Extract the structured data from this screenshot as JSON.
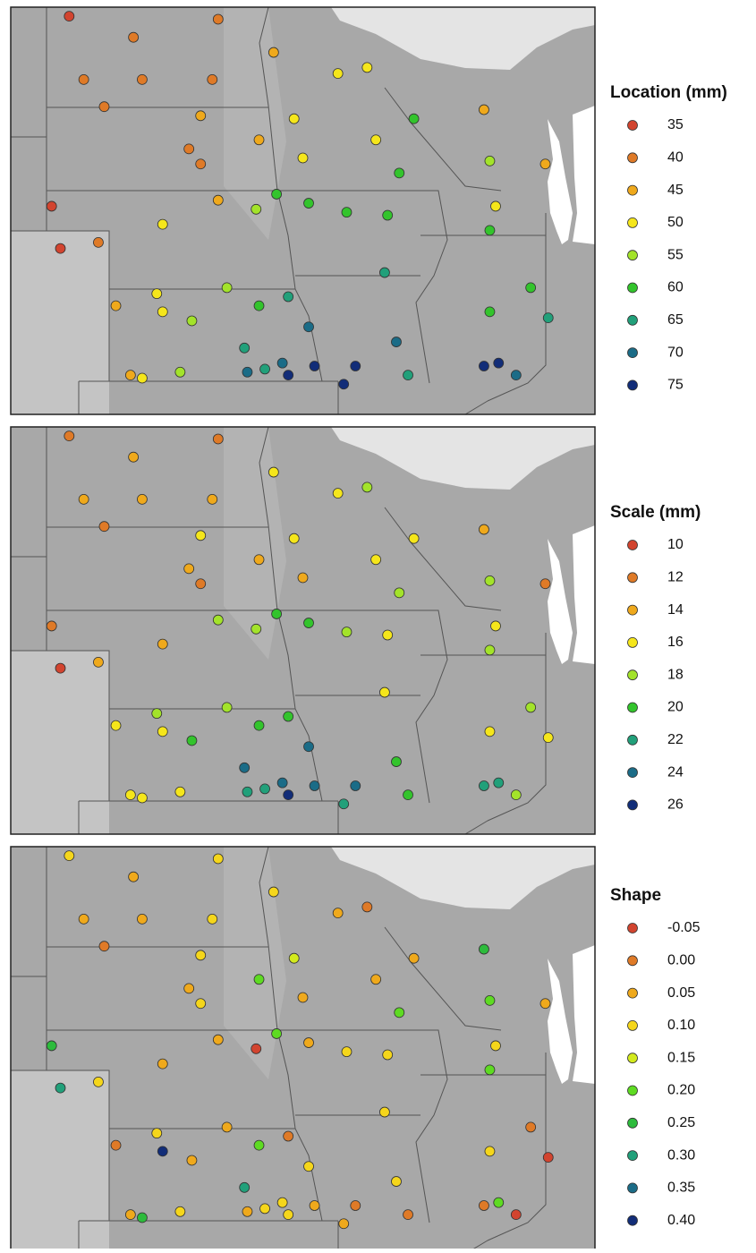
{
  "stations": [
    {
      "lon": -103.0,
      "lat": 49.2
    },
    {
      "lon": -100.8,
      "lat": 48.5
    },
    {
      "lon": -102.5,
      "lat": 47.1
    },
    {
      "lon": -100.5,
      "lat": 47.1
    },
    {
      "lon": -98.1,
      "lat": 47.1
    },
    {
      "lon": -101.8,
      "lat": 46.2
    },
    {
      "lon": -97.9,
      "lat": 49.1
    },
    {
      "lon": -98.5,
      "lat": 45.9
    },
    {
      "lon": -98.9,
      "lat": 44.8
    },
    {
      "lon": -98.5,
      "lat": 44.3
    },
    {
      "lon": -96.5,
      "lat": 45.1
    },
    {
      "lon": -96.0,
      "lat": 48.0
    },
    {
      "lon": -93.8,
      "lat": 47.3
    },
    {
      "lon": -92.8,
      "lat": 47.5
    },
    {
      "lon": -95.3,
      "lat": 45.8
    },
    {
      "lon": -95.0,
      "lat": 44.5
    },
    {
      "lon": -92.5,
      "lat": 45.1
    },
    {
      "lon": -91.2,
      "lat": 45.8
    },
    {
      "lon": -88.8,
      "lat": 46.1
    },
    {
      "lon": -88.6,
      "lat": 44.4
    },
    {
      "lon": -86.7,
      "lat": 44.3
    },
    {
      "lon": -91.7,
      "lat": 44.0
    },
    {
      "lon": -103.6,
      "lat": 42.9
    },
    {
      "lon": -103.3,
      "lat": 41.5
    },
    {
      "lon": -102.0,
      "lat": 41.7
    },
    {
      "lon": -99.8,
      "lat": 42.3
    },
    {
      "lon": -97.9,
      "lat": 43.1
    },
    {
      "lon": -96.6,
      "lat": 42.8
    },
    {
      "lon": -95.9,
      "lat": 43.3
    },
    {
      "lon": -94.8,
      "lat": 43.0
    },
    {
      "lon": -93.5,
      "lat": 42.7
    },
    {
      "lon": -92.1,
      "lat": 42.6
    },
    {
      "lon": -88.4,
      "lat": 42.9
    },
    {
      "lon": -88.6,
      "lat": 42.1
    },
    {
      "lon": -101.4,
      "lat": 39.6
    },
    {
      "lon": -100.0,
      "lat": 40.0
    },
    {
      "lon": -98.8,
      "lat": 39.1
    },
    {
      "lon": -97.6,
      "lat": 40.2
    },
    {
      "lon": -96.5,
      "lat": 39.6
    },
    {
      "lon": -95.5,
      "lat": 39.9
    },
    {
      "lon": -95.7,
      "lat": 37.7
    },
    {
      "lon": -95.5,
      "lat": 37.3
    },
    {
      "lon": -94.6,
      "lat": 37.6
    },
    {
      "lon": -93.6,
      "lat": 37.0
    },
    {
      "lon": -93.2,
      "lat": 37.6
    },
    {
      "lon": -91.8,
      "lat": 38.4
    },
    {
      "lon": -91.4,
      "lat": 37.3
    },
    {
      "lon": -92.2,
      "lat": 40.7
    },
    {
      "lon": -88.6,
      "lat": 39.4
    },
    {
      "lon": -87.2,
      "lat": 40.2
    },
    {
      "lon": -86.6,
      "lat": 39.2
    },
    {
      "lon": -87.7,
      "lat": 37.3
    },
    {
      "lon": -88.3,
      "lat": 37.7
    },
    {
      "lon": -88.8,
      "lat": 37.6
    },
    {
      "lon": -100.9,
      "lat": 37.3
    },
    {
      "lon": -100.5,
      "lat": 37.2
    },
    {
      "lon": -99.2,
      "lat": 37.4
    },
    {
      "lon": -96.9,
      "lat": 37.4
    },
    {
      "lon": -96.3,
      "lat": 37.5
    },
    {
      "lon": -94.8,
      "lat": 38.9
    },
    {
      "lon": -99.8,
      "lat": 39.4
    },
    {
      "lon": -97.0,
      "lat": 38.2
    }
  ],
  "panels": [
    {
      "legend_title": "Location (mm)",
      "levels": [
        35,
        40,
        45,
        50,
        55,
        60,
        65,
        70,
        75
      ],
      "colors": [
        "#d2442f",
        "#df7a27",
        "#efa91c",
        "#f5e61b",
        "#a3e32a",
        "#33c42c",
        "#21a07a",
        "#1b6c87",
        "#122d78"
      ],
      "values": [
        35,
        40,
        40,
        40,
        40,
        40,
        40,
        45,
        40,
        40,
        45,
        45,
        50,
        50,
        50,
        50,
        50,
        60,
        45,
        55,
        45,
        60,
        35,
        35,
        40,
        50,
        45,
        55,
        60,
        60,
        60,
        60,
        50,
        60,
        45,
        50,
        55,
        55,
        60,
        65,
        70,
        75,
        75,
        75,
        75,
        70,
        65,
        65,
        60,
        60,
        65,
        70,
        75,
        75,
        45,
        50,
        55,
        70,
        65,
        70,
        50,
        65
      ]
    },
    {
      "legend_title": "Scale (mm)",
      "levels": [
        10,
        12,
        14,
        16,
        18,
        20,
        22,
        24,
        26
      ],
      "colors": [
        "#d2442f",
        "#df7a27",
        "#efa91c",
        "#f5e61b",
        "#a3e32a",
        "#33c42c",
        "#21a07a",
        "#1b6c87",
        "#122d78"
      ],
      "values": [
        12,
        14,
        14,
        14,
        14,
        12,
        12,
        16,
        14,
        12,
        14,
        16,
        16,
        18,
        16,
        14,
        16,
        16,
        14,
        18,
        12,
        18,
        12,
        10,
        14,
        14,
        18,
        18,
        20,
        20,
        18,
        16,
        16,
        18,
        16,
        18,
        20,
        18,
        20,
        20,
        24,
        26,
        24,
        22,
        24,
        20,
        20,
        16,
        16,
        18,
        16,
        18,
        22,
        22,
        16,
        16,
        16,
        22,
        22,
        24,
        16,
        24
      ]
    },
    {
      "legend_title": "Shape",
      "levels": [
        {
          "value": -0.05,
          "label": "-0.05"
        },
        {
          "value": 0,
          "label": "0.00"
        },
        0.05,
        {
          "value": 0.1,
          "label": "0.10"
        },
        0.15,
        {
          "value": 0.2,
          "label": "0.20"
        },
        0.25,
        {
          "value": 0.3,
          "label": "0.30"
        },
        0.35,
        {
          "value": 0.4,
          "label": "0.40"
        }
      ],
      "colors": [
        "#d2442f",
        "#df7a27",
        "#efa91c",
        "#f5d61b",
        "#d3ea1d",
        "#5edb22",
        "#2dbb3c",
        "#21a07a",
        "#1b6c87",
        "#122d78"
      ],
      "values": [
        0.1,
        0.05,
        0.05,
        0.05,
        0.1,
        0,
        0.1,
        0.1,
        0.05,
        0.1,
        0.2,
        0.1,
        0.05,
        0,
        0.15,
        0.05,
        0.05,
        0.05,
        0.25,
        0.2,
        0.05,
        0.2,
        0.25,
        0.3,
        0.1,
        0.05,
        0.05,
        -0.05,
        0.2,
        0.05,
        0.1,
        0.1,
        0.1,
        0.2,
        0,
        0.1,
        0.05,
        0.05,
        0.2,
        0,
        0.1,
        0.1,
        0.05,
        0.05,
        0,
        0.1,
        0,
        0.1,
        0.1,
        0,
        -0.05,
        -0.05,
        0.2,
        0,
        0.05,
        0.25,
        0.1,
        0.05,
        0.1,
        0.1,
        0.4,
        0.3
      ]
    }
  ]
}
